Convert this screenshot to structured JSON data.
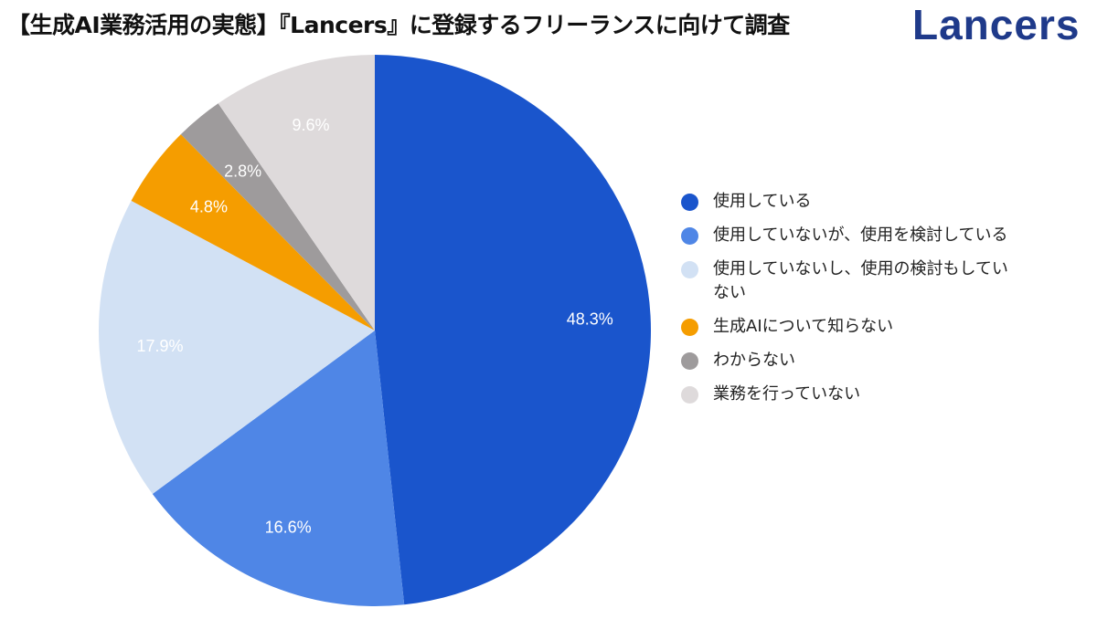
{
  "header": {
    "title": "【生成AI業務活用の実態】『Lancers』に登録するフリーランスに向けて調査",
    "brand": "Lancers"
  },
  "chart_data": {
    "type": "pie",
    "title": "",
    "categories": [
      "使用している",
      "使用していないが、使用を検討している",
      "使用していないし、使用の検討もしていない",
      "生成AIについて知らない",
      "わからない",
      "業務を行っていない"
    ],
    "values": [
      48.3,
      16.6,
      17.9,
      4.8,
      2.8,
      9.6
    ],
    "labels": [
      "48.3%",
      "16.6%",
      "17.9%",
      "4.8%",
      "2.8%",
      "9.6%"
    ],
    "colors": [
      "#1a55cc",
      "#4f86e6",
      "#d2e1f4",
      "#f59d00",
      "#9e9b9c",
      "#dedadb"
    ],
    "legend_position": "right",
    "start": "top",
    "direction": "clockwise"
  }
}
